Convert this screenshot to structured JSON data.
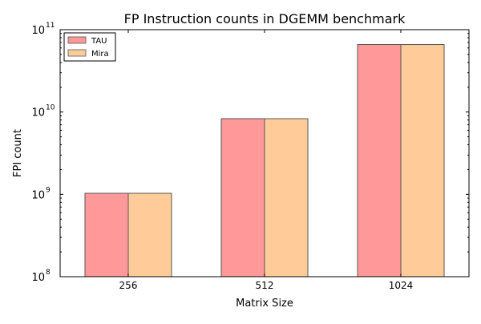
{
  "chart_data": {
    "type": "bar",
    "title": "FP Instruction counts in DGEMM benchmark",
    "xlabel": "Matrix Size",
    "ylabel": "FPI count",
    "yscale": "log",
    "ylim": [
      100000000,
      100000000000
    ],
    "y_ticks": [
      {
        "value": 100000000,
        "base": "10",
        "exp": "8"
      },
      {
        "value": 1000000000,
        "base": "10",
        "exp": "9"
      },
      {
        "value": 10000000000,
        "base": "10",
        "exp": "10"
      },
      {
        "value": 100000000000,
        "base": "10",
        "exp": "11"
      }
    ],
    "categories": [
      "256",
      "512",
      "1024"
    ],
    "series": [
      {
        "name": "TAU",
        "color": "#ff9999",
        "values": [
          1030000000,
          8300000000,
          66000000000
        ]
      },
      {
        "name": "Mira",
        "color": "#ffcc99",
        "values": [
          1030000000,
          8300000000,
          66000000000
        ]
      }
    ],
    "legend_position": "top-left",
    "grid": false
  }
}
